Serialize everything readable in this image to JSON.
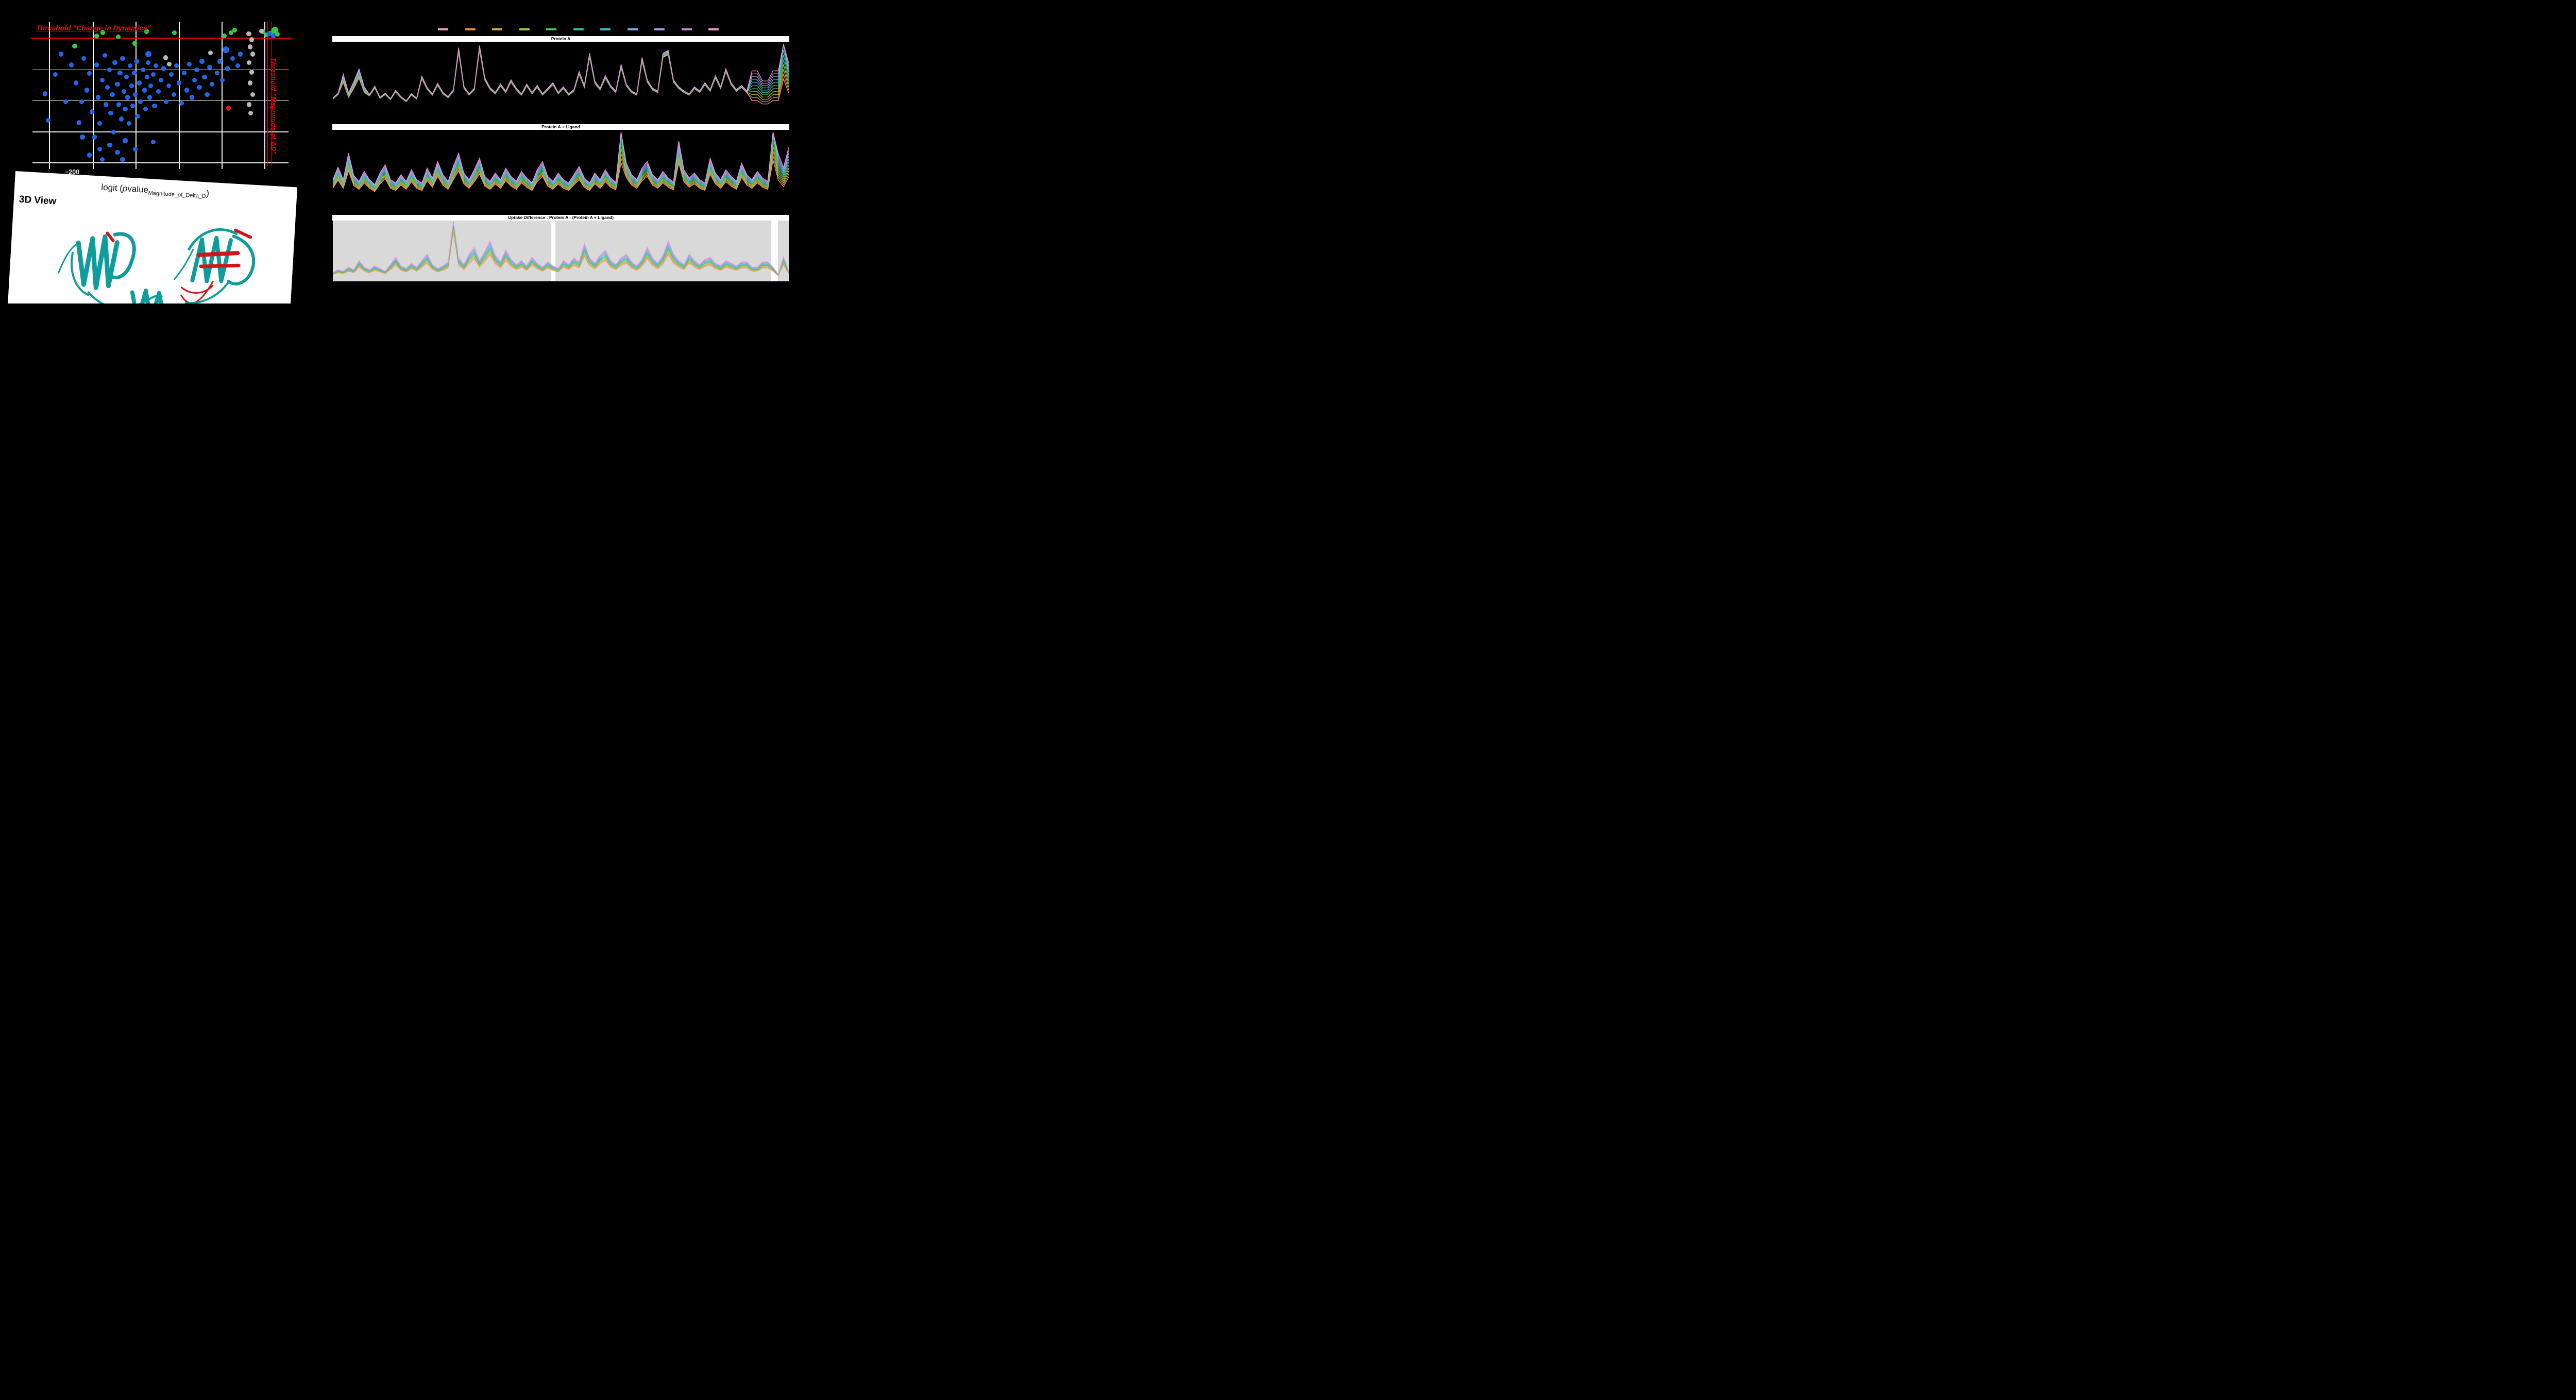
{
  "app": {
    "background": "#000000"
  },
  "legend": {
    "colors": [
      "#f2a0b4",
      "#ef9038",
      "#ccb234",
      "#9ccb40",
      "#4fc352",
      "#2fc39b",
      "#3ec0cc",
      "#6fb1e8",
      "#9f9fe6",
      "#c88be0",
      "#f09ad2"
    ]
  },
  "panel3d": {
    "title": "3D View",
    "ribbon": {
      "teal": "#0e9c9c",
      "red": "#cf1717"
    }
  },
  "chart_data": [
    {
      "id": "volcano",
      "type": "scatter",
      "annotations": {
        "threshold_top": "Threshold \"Change in Dynamics\"",
        "threshold_right": "Threshold \"Magnitude of ΔD\"",
        "x_axis_label_parts": {
          "pre": "logit (",
          "p": "p",
          "mid": "value",
          "sub": "Magnitude_of_Delta_D",
          "post": ")"
        },
        "x_tick_label": "−200"
      },
      "palette": {
        "b": "#2166e8",
        "g": "#2ecc40",
        "y": "#b8b8b8",
        "r": "#e81414",
        "threshold": "#ff0000"
      },
      "gridlines": {
        "v": [
          0.064,
          0.235,
          0.402,
          0.571,
          0.738,
          0.905
        ],
        "h": [
          0.332,
          0.546,
          0.761,
          0.975
        ]
      },
      "thresholds": {
        "h": 0.111,
        "v": [
          0.917,
          0.931
        ]
      },
      "points": [
        [
          0.165,
          0.17,
          "g"
        ],
        [
          0.25,
          0.1,
          "g"
        ],
        [
          0.275,
          0.075,
          "g"
        ],
        [
          0.335,
          0.105,
          "g"
        ],
        [
          0.4,
          0.15,
          "g"
        ],
        [
          0.445,
          0.068,
          "g"
        ],
        [
          0.555,
          0.078,
          "g"
        ],
        [
          0.75,
          0.098,
          "g"
        ],
        [
          0.775,
          0.078,
          "g"
        ],
        [
          0.79,
          0.058,
          "g"
        ],
        [
          0.9,
          0.068,
          "g"
        ],
        [
          0.915,
          0.09,
          "g"
        ],
        [
          0.935,
          0.078,
          "g"
        ],
        [
          0.947,
          0.058,
          "g",
          6.5
        ],
        [
          0.957,
          0.088,
          "g"
        ],
        [
          0.845,
          0.085,
          "y"
        ],
        [
          0.856,
          0.125,
          "y"
        ],
        [
          0.85,
          0.175,
          "y"
        ],
        [
          0.86,
          0.225,
          "y"
        ],
        [
          0.846,
          0.285,
          "y"
        ],
        [
          0.856,
          0.35,
          "y"
        ],
        [
          0.85,
          0.425,
          "y"
        ],
        [
          0.86,
          0.505,
          "y"
        ],
        [
          0.846,
          0.575,
          "y"
        ],
        [
          0.852,
          0.635,
          "y"
        ],
        [
          0.695,
          0.215,
          "y"
        ],
        [
          0.52,
          0.25,
          "y"
        ],
        [
          0.535,
          0.295,
          "y"
        ],
        [
          0.895,
          0.065,
          "y"
        ],
        [
          0.765,
          0.6,
          "r"
        ],
        [
          0.755,
          0.195,
          "b",
          6.5
        ],
        [
          0.452,
          0.225,
          "b",
          6
        ],
        [
          0.925,
          0.082,
          "b"
        ],
        [
          0.94,
          0.098,
          "b"
        ],
        [
          0.05,
          0.5,
          "b"
        ],
        [
          0.062,
          0.685,
          "b"
        ],
        [
          0.09,
          0.365,
          "b"
        ],
        [
          0.112,
          0.225,
          "b"
        ],
        [
          0.13,
          0.555,
          "b"
        ],
        [
          0.152,
          0.3,
          "b"
        ],
        [
          0.17,
          0.425,
          "b"
        ],
        [
          0.182,
          0.7,
          "b"
        ],
        [
          0.192,
          0.555,
          "b"
        ],
        [
          0.2,
          0.255,
          "b"
        ],
        [
          0.212,
          0.475,
          "b"
        ],
        [
          0.222,
          0.36,
          "b"
        ],
        [
          0.232,
          0.625,
          "b"
        ],
        [
          0.242,
          0.8,
          "b"
        ],
        [
          0.25,
          0.3,
          "b"
        ],
        [
          0.256,
          0.525,
          "b"
        ],
        [
          0.262,
          0.705,
          "b"
        ],
        [
          0.272,
          0.405,
          "b"
        ],
        [
          0.282,
          0.235,
          "b"
        ],
        [
          0.287,
          0.575,
          "b"
        ],
        [
          0.292,
          0.455,
          "b"
        ],
        [
          0.3,
          0.335,
          "b"
        ],
        [
          0.306,
          0.635,
          "b"
        ],
        [
          0.312,
          0.505,
          "b"
        ],
        [
          0.317,
          0.765,
          "b"
        ],
        [
          0.322,
          0.285,
          "b"
        ],
        [
          0.332,
          0.435,
          "b"
        ],
        [
          0.337,
          0.575,
          "b"
        ],
        [
          0.342,
          0.355,
          "b"
        ],
        [
          0.347,
          0.675,
          "b"
        ],
        [
          0.352,
          0.255,
          "b"
        ],
        [
          0.357,
          0.485,
          "b"
        ],
        [
          0.362,
          0.605,
          "b"
        ],
        [
          0.367,
          0.385,
          "b"
        ],
        [
          0.372,
          0.525,
          "b"
        ],
        [
          0.377,
          0.705,
          "b"
        ],
        [
          0.382,
          0.305,
          "b"
        ],
        [
          0.387,
          0.445,
          "b"
        ],
        [
          0.392,
          0.585,
          "b"
        ],
        [
          0.397,
          0.355,
          "b"
        ],
        [
          0.402,
          0.505,
          "b"
        ],
        [
          0.407,
          0.275,
          "b"
        ],
        [
          0.412,
          0.655,
          "b"
        ],
        [
          0.417,
          0.425,
          "b"
        ],
        [
          0.422,
          0.555,
          "b"
        ],
        [
          0.432,
          0.335,
          "b"
        ],
        [
          0.437,
          0.475,
          "b"
        ],
        [
          0.442,
          0.605,
          "b"
        ],
        [
          0.447,
          0.385,
          "b"
        ],
        [
          0.452,
          0.285,
          "b"
        ],
        [
          0.457,
          0.525,
          "b"
        ],
        [
          0.462,
          0.445,
          "b"
        ],
        [
          0.472,
          0.365,
          "b"
        ],
        [
          0.477,
          0.585,
          "b"
        ],
        [
          0.482,
          0.305,
          "b"
        ],
        [
          0.492,
          0.485,
          "b"
        ],
        [
          0.502,
          0.405,
          "b"
        ],
        [
          0.512,
          0.325,
          "b"
        ],
        [
          0.522,
          0.555,
          "b"
        ],
        [
          0.532,
          0.445,
          "b"
        ],
        [
          0.542,
          0.365,
          "b"
        ],
        [
          0.552,
          0.505,
          "b"
        ],
        [
          0.562,
          0.305,
          "b"
        ],
        [
          0.572,
          0.425,
          "b"
        ],
        [
          0.582,
          0.565,
          "b"
        ],
        [
          0.592,
          0.355,
          "b"
        ],
        [
          0.602,
          0.475,
          "b"
        ],
        [
          0.612,
          0.295,
          "b"
        ],
        [
          0.622,
          0.525,
          "b"
        ],
        [
          0.632,
          0.405,
          "b"
        ],
        [
          0.642,
          0.335,
          "b"
        ],
        [
          0.652,
          0.455,
          "b"
        ],
        [
          0.662,
          0.275,
          "b"
        ],
        [
          0.672,
          0.385,
          "b"
        ],
        [
          0.682,
          0.505,
          "b"
        ],
        [
          0.692,
          0.315,
          "b"
        ],
        [
          0.702,
          0.435,
          "b"
        ],
        [
          0.722,
          0.355,
          "b"
        ],
        [
          0.732,
          0.275,
          "b"
        ],
        [
          0.742,
          0.405,
          "b"
        ],
        [
          0.762,
          0.325,
          "b"
        ],
        [
          0.782,
          0.255,
          "b"
        ],
        [
          0.802,
          0.305,
          "b"
        ],
        [
          0.812,
          0.225,
          "b"
        ],
        [
          0.262,
          0.885,
          "b"
        ],
        [
          0.272,
          0.955,
          "b"
        ],
        [
          0.302,
          0.855,
          "b"
        ],
        [
          0.332,
          0.905,
          "b"
        ],
        [
          0.362,
          0.825,
          "b"
        ],
        [
          0.402,
          0.885,
          "b"
        ],
        [
          0.222,
          0.925,
          "b"
        ],
        [
          0.472,
          0.835,
          "b"
        ],
        [
          0.352,
          0.955,
          "b"
        ],
        [
          0.195,
          0.8,
          "b"
        ]
      ]
    },
    {
      "id": "protein-a",
      "type": "line",
      "title": "Protein A",
      "n": 88,
      "base": [
        0.25,
        0.32,
        0.55,
        0.3,
        0.45,
        0.62,
        0.38,
        0.3,
        0.42,
        0.26,
        0.32,
        0.24,
        0.36,
        0.27,
        0.21,
        0.31,
        0.25,
        0.56,
        0.4,
        0.31,
        0.46,
        0.33,
        0.27,
        0.37,
        0.97,
        0.42,
        0.31,
        0.39,
        1.0,
        0.54,
        0.4,
        0.33,
        0.45,
        0.35,
        0.51,
        0.39,
        0.31,
        0.45,
        0.33,
        0.43,
        0.31,
        0.39,
        0.47,
        0.33,
        0.41,
        0.31,
        0.37,
        0.63,
        0.43,
        0.89,
        0.49,
        0.39,
        0.57,
        0.43,
        0.35,
        0.73,
        0.45,
        0.35,
        0.31,
        0.83,
        0.51,
        0.39,
        0.35,
        0.89,
        0.93,
        0.51,
        0.41,
        0.35,
        0.31,
        0.41,
        0.35,
        0.47,
        0.37,
        0.57,
        0.41,
        0.67,
        0.47,
        0.37,
        0.43,
        0.35,
        0.44,
        0.44,
        0.34,
        0.34,
        0.44,
        0.44,
        0.9,
        0.55
      ],
      "spread": {
        "default": 0.07,
        "regions": [
          [
            2,
            6,
            0.22
          ],
          [
            80,
            85,
            1.0
          ],
          [
            86,
            87,
            0.8
          ]
        ]
      }
    },
    {
      "id": "protein-a-ligand",
      "type": "line",
      "title": "Protein A + Ligand",
      "n": 88,
      "base": [
        0.3,
        0.45,
        0.3,
        0.62,
        0.35,
        0.28,
        0.4,
        0.3,
        0.24,
        0.38,
        0.48,
        0.3,
        0.26,
        0.36,
        0.28,
        0.42,
        0.3,
        0.26,
        0.44,
        0.32,
        0.52,
        0.36,
        0.28,
        0.46,
        0.62,
        0.38,
        0.3,
        0.42,
        0.56,
        0.34,
        0.28,
        0.38,
        0.3,
        0.44,
        0.34,
        0.28,
        0.4,
        0.32,
        0.26,
        0.42,
        0.52,
        0.34,
        0.28,
        0.38,
        0.3,
        0.26,
        0.36,
        0.46,
        0.32,
        0.26,
        0.38,
        0.3,
        0.42,
        0.32,
        0.27,
        0.97,
        0.5,
        0.36,
        0.3,
        0.44,
        0.52,
        0.36,
        0.3,
        0.4,
        0.32,
        0.27,
        0.77,
        0.42,
        0.32,
        0.38,
        0.3,
        0.26,
        0.56,
        0.38,
        0.3,
        0.42,
        0.34,
        0.28,
        0.5,
        0.36,
        0.3,
        0.4,
        0.32,
        0.28,
        1.0,
        0.55,
        0.4,
        0.62
      ],
      "spread": {
        "default": 0.42,
        "regions": [
          [
            55,
            55,
            0.75
          ],
          [
            84,
            87,
            0.7
          ]
        ]
      }
    },
    {
      "id": "uptake-difference",
      "type": "line",
      "title": "Uptake Difference : Protein A - (Protein A + Ligand)",
      "n": 88,
      "plot_bg": "#d9d9d9",
      "bg_segments": [
        [
          0,
          0.479
        ],
        [
          0.488,
          0.96
        ],
        [
          0.976,
          1.0
        ]
      ],
      "base": [
        0.08,
        0.12,
        0.1,
        0.16,
        0.12,
        0.26,
        0.16,
        0.12,
        0.18,
        0.14,
        0.1,
        0.2,
        0.31,
        0.18,
        0.14,
        0.22,
        0.16,
        0.26,
        0.36,
        0.2,
        0.14,
        0.18,
        0.24,
        1.0,
        0.3,
        0.2,
        0.36,
        0.46,
        0.26,
        0.4,
        0.56,
        0.34,
        0.24,
        0.42,
        0.28,
        0.2,
        0.26,
        0.18,
        0.31,
        0.22,
        0.16,
        0.24,
        0.18,
        0.14,
        0.26,
        0.2,
        0.3,
        0.24,
        0.52,
        0.3,
        0.22,
        0.34,
        0.42,
        0.26,
        0.2,
        0.3,
        0.36,
        0.24,
        0.18,
        0.28,
        0.46,
        0.3,
        0.22,
        0.34,
        0.56,
        0.36,
        0.26,
        0.2,
        0.36,
        0.26,
        0.2,
        0.28,
        0.31,
        0.22,
        0.18,
        0.26,
        0.22,
        0.18,
        0.24,
        0.24,
        0.16,
        0.16,
        0.24,
        0.24,
        0.16,
        0.05,
        0.32,
        0.1
      ],
      "spread": {
        "default": 0.5,
        "regions": [
          [
            23,
            23,
            0.3
          ]
        ]
      }
    }
  ]
}
